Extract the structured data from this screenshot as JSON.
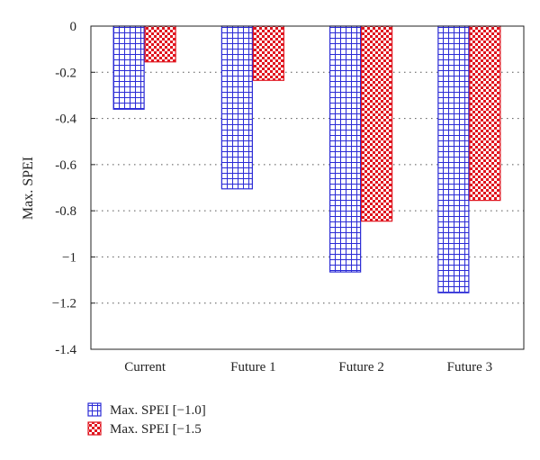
{
  "chart_data": {
    "type": "bar",
    "categories": [
      "Current",
      "Future 1",
      "Future 2",
      "Future 3"
    ],
    "series": [
      {
        "name": "Max. SPEI [−1.0]",
        "values": [
          -0.36,
          -0.705,
          -1.065,
          -1.155
        ],
        "color": "#2b2bd6",
        "pattern": "grid"
      },
      {
        "name": "Max. SPEI [−1.5",
        "values": [
          -0.155,
          -0.235,
          -0.845,
          -0.755
        ],
        "color": "#e0141e",
        "pattern": "checker"
      }
    ],
    "ylabel": "Max. SPEI",
    "ylim": [
      -1.4,
      0
    ],
    "yticks": [
      0,
      -0.2,
      -0.4,
      -0.6,
      -0.8,
      -1,
      -1.2,
      -1.4
    ],
    "ytick_labels": [
      "0",
      "-0.2",
      "-0.4",
      "-0.6",
      "-0.8",
      "−1",
      "−1.2",
      "-1.4"
    ],
    "grid": "horizontal-dotted",
    "legend_position": "bottom-left"
  }
}
